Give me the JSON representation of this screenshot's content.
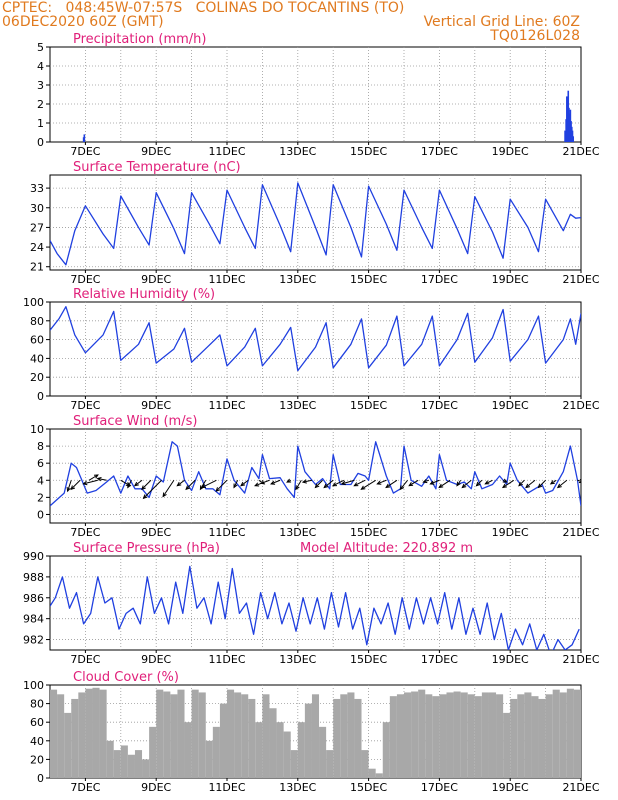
{
  "header": {
    "left_line1": "CPTEC:   048:45W-07:57S   COLINAS DO TOCANTINS (TO)",
    "left_line2": "06DEC2020 60Z (GMT)",
    "right_line1": "Vertical Grid Line: 60Z",
    "right_line2": "TQ0126L028"
  },
  "colors": {
    "line": "#2040e0",
    "title": "#e0207a",
    "header": "#e07a1f",
    "cloud": "#a8a8a8"
  },
  "x_axis": {
    "range": [
      6.0,
      21.0
    ],
    "tick_positions": [
      7,
      9,
      11,
      13,
      15,
      17,
      19,
      21
    ],
    "tick_labels": [
      "7DEC",
      "9DEC",
      "11DEC",
      "13DEC",
      "15DEC",
      "17DEC",
      "19DEC",
      "21DEC"
    ],
    "grid": "vertical dotted every day"
  },
  "chart_data": [
    {
      "type": "bar",
      "title": "Precipitation (mm/h)",
      "ylim": [
        0,
        5
      ],
      "yticks": [
        0,
        1,
        2,
        3,
        4,
        5
      ],
      "x": [
        6.95,
        6.97,
        20.55,
        20.58,
        20.6,
        20.62,
        20.64,
        20.66,
        20.68,
        20.7,
        20.72,
        20.74,
        20.76,
        20.78
      ],
      "values": [
        0.25,
        0.4,
        0.6,
        1.2,
        2.4,
        2.0,
        2.7,
        1.8,
        1.5,
        1.7,
        1.1,
        0.8,
        0.6,
        0.3
      ]
    },
    {
      "type": "line",
      "title": "Surface Temperature (nC)",
      "ylim": [
        20.5,
        35
      ],
      "yticks": [
        21,
        24,
        27,
        30,
        33
      ],
      "x": [
        6.0,
        6.2,
        6.45,
        6.7,
        7.0,
        7.5,
        7.8,
        8.0,
        8.5,
        8.8,
        9.0,
        9.5,
        9.8,
        10.0,
        10.5,
        10.8,
        11.0,
        11.5,
        11.8,
        12.0,
        12.5,
        12.8,
        13.0,
        13.5,
        13.8,
        14.0,
        14.5,
        14.8,
        15.0,
        15.5,
        15.8,
        16.0,
        16.5,
        16.8,
        17.0,
        17.5,
        17.8,
        18.0,
        18.5,
        18.8,
        19.0,
        19.5,
        19.8,
        20.0,
        20.5,
        20.7,
        20.85,
        21.0
      ],
      "values": [
        25.0,
        23.0,
        21.3,
        26.5,
        30.3,
        26.0,
        23.8,
        31.8,
        27.0,
        24.3,
        32.3,
        26.8,
        23.0,
        32.3,
        27.5,
        24.5,
        32.7,
        27.0,
        23.8,
        33.5,
        27.3,
        23.3,
        33.8,
        27.0,
        22.8,
        33.5,
        27.0,
        22.5,
        33.3,
        27.5,
        23.5,
        32.7,
        27.0,
        23.8,
        32.7,
        26.8,
        23.0,
        31.7,
        26.3,
        22.3,
        31.3,
        27.0,
        23.3,
        31.3,
        26.5,
        29.0,
        28.4,
        28.5
      ]
    },
    {
      "type": "line",
      "title": "Relative Humidity (%)",
      "ylim": [
        0,
        100
      ],
      "yticks": [
        0,
        20,
        40,
        60,
        80,
        100
      ],
      "x": [
        6.0,
        6.25,
        6.45,
        6.7,
        7.0,
        7.5,
        7.8,
        8.0,
        8.5,
        8.8,
        9.0,
        9.5,
        9.8,
        10.0,
        10.5,
        10.8,
        11.0,
        11.5,
        11.8,
        12.0,
        12.5,
        12.8,
        13.0,
        13.5,
        13.8,
        14.0,
        14.5,
        14.8,
        15.0,
        15.5,
        15.8,
        16.0,
        16.5,
        16.8,
        17.0,
        17.5,
        17.8,
        18.0,
        18.5,
        18.8,
        19.0,
        19.5,
        19.8,
        20.0,
        20.5,
        20.7,
        20.85,
        21.0
      ],
      "values": [
        70,
        82,
        95,
        65,
        46,
        65,
        90,
        38,
        55,
        78,
        35,
        50,
        72,
        36,
        54,
        65,
        32,
        52,
        72,
        32,
        55,
        73,
        27,
        52,
        78,
        30,
        55,
        82,
        30,
        54,
        85,
        32,
        55,
        85,
        32,
        60,
        88,
        36,
        62,
        92,
        37,
        60,
        85,
        35,
        60,
        82,
        55,
        88
      ]
    },
    {
      "type": "line",
      "title": "Surface Wind (m/s)",
      "ylim": [
        -1,
        10
      ],
      "yticks": [
        0,
        2,
        4,
        6,
        8,
        10
      ],
      "x": [
        6.0,
        6.4,
        6.6,
        6.75,
        6.9,
        7.05,
        7.3,
        7.6,
        7.8,
        8.0,
        8.2,
        8.4,
        8.6,
        8.8,
        9.0,
        9.2,
        9.45,
        9.6,
        9.8,
        10.0,
        10.2,
        10.4,
        10.6,
        10.8,
        11.0,
        11.2,
        11.5,
        11.7,
        11.9,
        12.0,
        12.2,
        12.5,
        12.7,
        12.9,
        13.0,
        13.2,
        13.5,
        13.7,
        13.9,
        14.0,
        14.2,
        14.5,
        14.7,
        14.9,
        15.0,
        15.2,
        15.5,
        15.7,
        15.9,
        16.0,
        16.2,
        16.5,
        16.7,
        16.9,
        17.0,
        17.2,
        17.5,
        17.7,
        17.9,
        18.0,
        18.2,
        18.5,
        18.7,
        18.9,
        19.0,
        19.2,
        19.5,
        19.7,
        19.9,
        20.0,
        20.2,
        20.5,
        20.7,
        20.9,
        21.0
      ],
      "values": [
        1.0,
        2.5,
        6.0,
        5.5,
        4.0,
        2.5,
        2.8,
        3.8,
        4.5,
        2.5,
        4.5,
        3.0,
        3.0,
        2.0,
        4.5,
        3.8,
        8.5,
        8.0,
        4.0,
        2.8,
        5.0,
        3.0,
        3.0,
        2.3,
        6.5,
        4.0,
        2.5,
        5.5,
        4.2,
        7.0,
        4.2,
        4.3,
        3.0,
        2.0,
        8.0,
        5.0,
        3.5,
        4.2,
        3.0,
        7.0,
        3.5,
        3.5,
        4.8,
        4.5,
        4.0,
        8.5,
        4.5,
        2.5,
        3.0,
        8.0,
        4.0,
        3.3,
        4.5,
        3.0,
        7.0,
        4.0,
        3.5,
        3.8,
        3.0,
        5.0,
        3.0,
        3.5,
        4.5,
        3.5,
        6.0,
        4.0,
        2.5,
        3.0,
        3.5,
        2.5,
        2.8,
        5.0,
        8.0,
        4.0,
        1.0
      ]
    },
    {
      "type": "line",
      "title": "Surface Pressure (hPa)",
      "annotation": "Model Altitude: 220.892 m",
      "ylim": [
        981,
        990
      ],
      "yticks": [
        982,
        984,
        986,
        988,
        990
      ],
      "x": [
        6.0,
        6.15,
        6.35,
        6.55,
        6.75,
        6.95,
        7.15,
        7.35,
        7.55,
        7.75,
        7.95,
        8.15,
        8.35,
        8.55,
        8.75,
        8.95,
        9.15,
        9.35,
        9.55,
        9.75,
        9.95,
        10.15,
        10.35,
        10.55,
        10.75,
        10.95,
        11.15,
        11.35,
        11.55,
        11.75,
        11.95,
        12.15,
        12.35,
        12.55,
        12.75,
        12.95,
        13.15,
        13.35,
        13.55,
        13.75,
        13.95,
        14.15,
        14.35,
        14.55,
        14.75,
        14.95,
        15.15,
        15.35,
        15.55,
        15.75,
        15.95,
        16.15,
        16.35,
        16.55,
        16.75,
        16.95,
        17.15,
        17.35,
        17.55,
        17.75,
        17.95,
        18.15,
        18.35,
        18.55,
        18.75,
        18.95,
        19.15,
        19.35,
        19.55,
        19.75,
        19.95,
        20.15,
        20.35,
        20.55,
        20.75,
        20.95
      ],
      "values": [
        985.2,
        986.0,
        988.0,
        985.0,
        986.5,
        983.5,
        984.5,
        988.0,
        985.5,
        986.0,
        983.0,
        984.5,
        985.0,
        983.5,
        988.0,
        984.5,
        986.0,
        983.5,
        987.5,
        984.5,
        989.0,
        985.0,
        986.0,
        983.5,
        987.5,
        984.0,
        988.8,
        984.5,
        985.5,
        982.5,
        986.5,
        984.0,
        986.5,
        983.5,
        985.5,
        982.8,
        986.0,
        983.5,
        986.0,
        983.0,
        986.5,
        983.2,
        986.5,
        983.0,
        985.0,
        981.5,
        985.0,
        983.5,
        985.5,
        982.5,
        986.0,
        983.0,
        986.0,
        983.5,
        986.0,
        983.5,
        986.5,
        983.0,
        986.0,
        982.5,
        985.0,
        982.5,
        985.5,
        982.0,
        984.5,
        981.0,
        983.0,
        981.5,
        983.5,
        981.0,
        982.5,
        980.5,
        982.0,
        981.0,
        981.5,
        983.0
      ]
    },
    {
      "type": "bar",
      "title": "Cloud Cover (%)",
      "ylim": [
        0,
        100
      ],
      "yticks": [
        0,
        20,
        40,
        60,
        80,
        100
      ],
      "x": [
        6.1,
        6.3,
        6.5,
        6.7,
        6.9,
        7.1,
        7.3,
        7.5,
        7.7,
        7.9,
        8.1,
        8.3,
        8.5,
        8.7,
        8.9,
        9.1,
        9.3,
        9.5,
        9.7,
        9.9,
        10.1,
        10.3,
        10.5,
        10.7,
        10.9,
        11.1,
        11.3,
        11.5,
        11.7,
        11.9,
        12.1,
        12.3,
        12.5,
        12.7,
        12.9,
        13.1,
        13.3,
        13.5,
        13.7,
        13.9,
        14.1,
        14.3,
        14.5,
        14.7,
        14.9,
        15.1,
        15.3,
        15.5,
        15.7,
        15.9,
        16.1,
        16.3,
        16.5,
        16.7,
        16.9,
        17.1,
        17.3,
        17.5,
        17.7,
        17.9,
        18.1,
        18.3,
        18.5,
        18.7,
        18.9,
        19.1,
        19.3,
        19.5,
        19.7,
        19.9,
        20.1,
        20.3,
        20.5,
        20.7,
        20.9
      ],
      "values": [
        95,
        90,
        70,
        85,
        92,
        96,
        97,
        95,
        40,
        30,
        35,
        25,
        30,
        20,
        55,
        95,
        93,
        90,
        95,
        60,
        95,
        92,
        40,
        55,
        80,
        95,
        92,
        90,
        85,
        60,
        90,
        75,
        60,
        50,
        30,
        60,
        80,
        90,
        55,
        30,
        85,
        90,
        92,
        85,
        30,
        10,
        5,
        60,
        88,
        90,
        92,
        93,
        95,
        90,
        88,
        90,
        92,
        93,
        92,
        90,
        88,
        92,
        92,
        90,
        70,
        85,
        90,
        92,
        88,
        85,
        90,
        95,
        92,
        96,
        95
      ]
    }
  ],
  "wind_arrows": {
    "x": [
      6.6,
      6.85,
      7.1,
      7.35,
      7.6,
      8.0,
      8.3,
      8.6,
      8.85,
      9.15,
      9.5,
      9.8,
      10.1,
      10.4,
      10.7,
      11.0,
      11.3,
      11.6,
      11.9,
      12.2,
      12.5,
      12.8,
      13.1,
      13.4,
      13.7,
      14.0,
      14.3,
      14.6,
      14.9,
      15.2,
      15.5,
      15.8,
      16.1,
      16.4,
      16.7,
      17.0,
      17.3,
      17.6,
      17.9,
      18.2,
      18.5,
      18.8,
      19.1,
      19.4,
      19.7,
      20.0,
      20.3,
      20.6,
      20.9
    ],
    "u": [
      0.2,
      0.5,
      -0.5,
      0.8,
      0.5,
      -0.5,
      0.2,
      0.4,
      0.5,
      1.0,
      0.6,
      0.4,
      0.5,
      0.3,
      0.8,
      0.6,
      0.2,
      0.4,
      -0.3,
      0.8,
      0.5,
      0.2,
      0.3,
      0.5,
      0.4,
      0.5,
      0.6,
      0.7,
      0.6,
      0.8,
      0.5,
      0.6,
      0.4,
      0.5,
      0.3,
      0.5,
      0.6,
      0.2,
      0.5,
      0.3,
      0.4,
      -0.2,
      0.6,
      0.3,
      0.5,
      0.4,
      0.3,
      0.5,
      -0.3
    ],
    "v": [
      0.6,
      0.5,
      -0.3,
      0.2,
      -0.1,
      0.3,
      0.4,
      0.3,
      0.5,
      1.0,
      0.9,
      0.3,
      0.5,
      0.5,
      0.4,
      0.6,
      0.4,
      0.3,
      0.2,
      0.3,
      0.2,
      0.1,
      0.5,
      0.1,
      0.4,
      0.4,
      0.3,
      0.2,
      0.3,
      0.5,
      0.2,
      0.4,
      0.5,
      0.3,
      0.1,
      0.2,
      0.4,
      0.3,
      0.4,
      0.3,
      0.2,
      0.1,
      0.4,
      0.3,
      0.4,
      0.4,
      0.2,
      0.4,
      0.1
    ]
  }
}
